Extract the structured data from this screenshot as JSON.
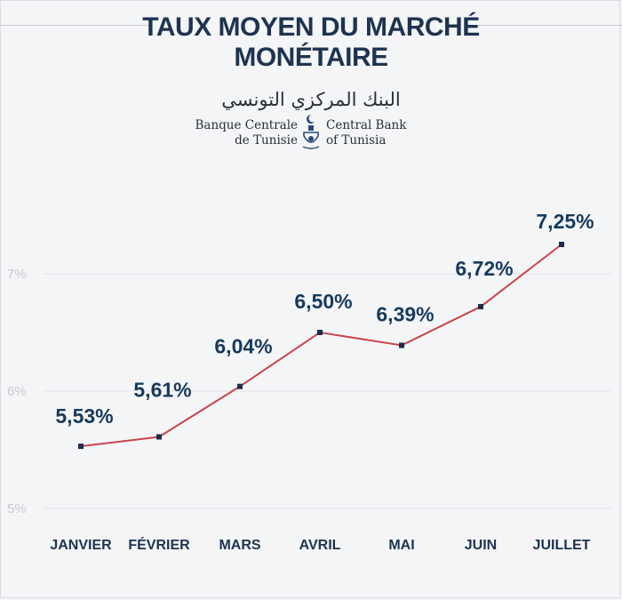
{
  "header": {
    "title_line1": "TAUX MOYEN DU MARCHÉ",
    "title_line2": "MONÉTAIRE"
  },
  "logo": {
    "arabic": "البنك المركزي التونسي",
    "fr_line1": "Banque Centrale",
    "fr_line2": "de Tunisie",
    "en_line1": "Central Bank",
    "en_line2": "of Tunisia"
  },
  "colors": {
    "title": "#1e3350",
    "line": "#c9444c",
    "marker": "#1b2d4a",
    "gridline": "#e2e4e8",
    "background": "#f4f5f7"
  },
  "chart_data": {
    "type": "line",
    "categories": [
      "JANVIER",
      "FÉVRIER",
      "MARS",
      "AVRIL",
      "MAI",
      "JUIN",
      "JUILLET"
    ],
    "values": [
      5.53,
      5.61,
      6.04,
      6.5,
      6.39,
      6.72,
      7.25
    ],
    "data_labels": [
      "5,53%",
      "5,61%",
      "6,04%",
      "6,50%",
      "6,39%",
      "6,72%",
      "7,25%"
    ],
    "y_ticks": [
      5,
      6,
      7
    ],
    "y_tick_labels": [
      "5%",
      "6%",
      "7%"
    ],
    "ylim": [
      5,
      7.5
    ],
    "title": "TAUX MOYEN DU MARCHÉ MONÉTAIRE",
    "xlabel": "",
    "ylabel": "",
    "grid": true,
    "legend": "none"
  }
}
